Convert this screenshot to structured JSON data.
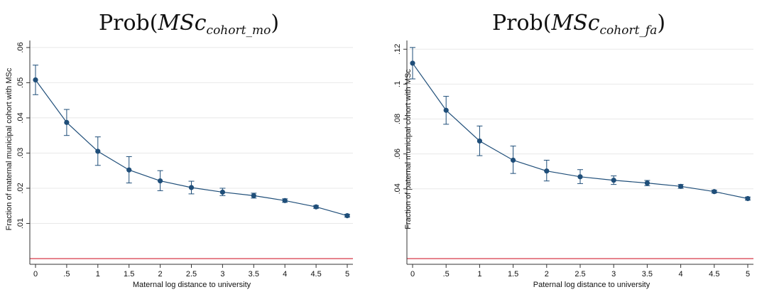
{
  "colors": {
    "series": "#1f4e79",
    "reference": "#d73a49",
    "grid": "#e8e8e8",
    "axis": "#333333"
  },
  "chart_data": [
    {
      "type": "line",
      "title_main": "Prob(",
      "title_italic": "MSc",
      "title_sub": "cohort_mo",
      "title_close": ")",
      "xlabel": "Maternal log distance to university",
      "ylabel": "Fraction of maternal municipal cohort with MSc",
      "xlim": [
        0,
        5
      ],
      "ylim": [
        0,
        0.062
      ],
      "x_ticks": [
        0,
        0.5,
        1,
        1.5,
        2,
        2.5,
        3,
        3.5,
        4,
        4.5,
        5
      ],
      "x_tick_labels": [
        "0",
        ".5",
        "1",
        "1.5",
        "2",
        "2.5",
        "3",
        "3.5",
        "4",
        "4.5",
        "5"
      ],
      "y_ticks": [
        0.01,
        0.02,
        0.03,
        0.04,
        0.05,
        0.06
      ],
      "y_tick_labels": [
        ".01",
        ".02",
        ".03",
        ".04",
        ".05",
        ".06"
      ],
      "grid": true,
      "reference_line": 0,
      "x": [
        0,
        0.5,
        1,
        1.5,
        2,
        2.5,
        3,
        3.5,
        4,
        4.5,
        5
      ],
      "y": [
        0.0508,
        0.0387,
        0.0305,
        0.0252,
        0.0221,
        0.0202,
        0.0189,
        0.0179,
        0.0165,
        0.0147,
        0.0122
      ],
      "ci_low": [
        0.0466,
        0.035,
        0.0265,
        0.0215,
        0.0193,
        0.0184,
        0.0179,
        0.0172,
        0.016,
        0.0143,
        0.0118
      ],
      "ci_high": [
        0.055,
        0.0424,
        0.0346,
        0.029,
        0.025,
        0.022,
        0.02,
        0.0186,
        0.017,
        0.0151,
        0.0126
      ]
    },
    {
      "type": "line",
      "title_main": "Prob(",
      "title_italic": "MSc",
      "title_sub": "cohort_fa",
      "title_close": ")",
      "xlabel": "Paternal log distance to university",
      "ylabel": "Fraction of paternal municipal cohort with MSc",
      "xlim": [
        0,
        5
      ],
      "ylim": [
        0,
        0.125
      ],
      "x_ticks": [
        0,
        0.5,
        1,
        1.5,
        2,
        2.5,
        3,
        3.5,
        4,
        4.5,
        5
      ],
      "x_tick_labels": [
        "0",
        ".5",
        "1",
        "1.5",
        "2",
        "2.5",
        "3",
        "3.5",
        "4",
        "4.5",
        "5"
      ],
      "y_ticks": [
        0.04,
        0.06,
        0.08,
        0.1,
        0.12
      ],
      "y_tick_labels": [
        ".04",
        ".06",
        ".08",
        ".1",
        ".12"
      ],
      "grid": true,
      "reference_line": 0,
      "x": [
        0,
        0.5,
        1,
        1.5,
        2,
        2.5,
        3,
        3.5,
        4,
        4.5,
        5
      ],
      "y": [
        0.112,
        0.085,
        0.0674,
        0.0564,
        0.0502,
        0.0469,
        0.0449,
        0.0433,
        0.0414,
        0.0384,
        0.0344
      ],
      "ci_low": [
        0.103,
        0.077,
        0.059,
        0.0488,
        0.0445,
        0.043,
        0.0425,
        0.0418,
        0.0403,
        0.0376,
        0.0335
      ],
      "ci_high": [
        0.121,
        0.093,
        0.076,
        0.0645,
        0.0564,
        0.051,
        0.0474,
        0.0448,
        0.0425,
        0.0392,
        0.0353
      ]
    }
  ]
}
